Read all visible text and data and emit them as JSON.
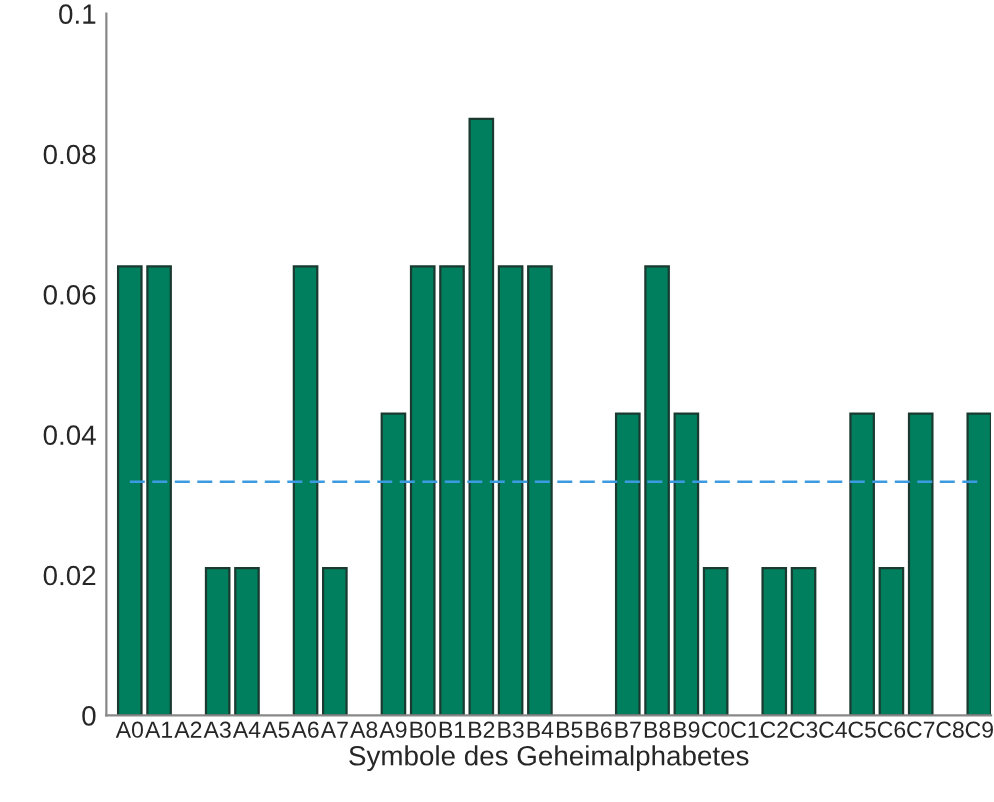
{
  "chart_data": {
    "type": "bar",
    "xlabel": "Symbole des Geheimalphabetes",
    "categories": [
      "A0",
      "A1",
      "A2",
      "A3",
      "A4",
      "A5",
      "A6",
      "A7",
      "A8",
      "A9",
      "B0",
      "B1",
      "B2",
      "B3",
      "B4",
      "B5",
      "B6",
      "B7",
      "B8",
      "B9",
      "C0",
      "C1",
      "C2",
      "C3",
      "C4",
      "C5",
      "C6",
      "C7",
      "C8",
      "C9"
    ],
    "values": [
      0.064,
      0.064,
      0,
      0.021,
      0.021,
      0,
      0.064,
      0.021,
      0,
      0.043,
      0.064,
      0.064,
      0.085,
      0.064,
      0.064,
      0,
      0,
      0.043,
      0.064,
      0.043,
      0.021,
      0,
      0.021,
      0.021,
      0,
      0.043,
      0.021,
      0.043,
      0,
      0.043
    ],
    "color": "#007f5f",
    "ylim": [
      0,
      0.1
    ],
    "yticks": [
      0,
      0.02,
      0.04,
      0.06,
      0.08,
      0.1
    ],
    "ref_lines": [
      {
        "axis": "y",
        "value": 0.0333,
        "color": "#3c9be0",
        "line_style": "dashed"
      }
    ],
    "grid": false
  }
}
